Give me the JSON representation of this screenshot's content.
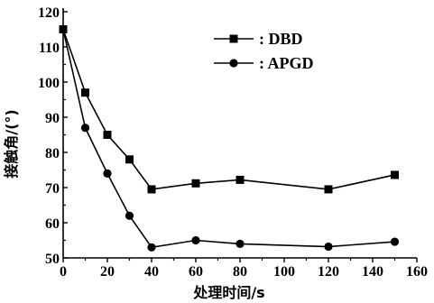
{
  "chart_data": {
    "type": "line",
    "title": "",
    "xlabel": "处理时间/s",
    "ylabel": "接触角/(°)",
    "xlim": [
      0,
      160
    ],
    "ylim": [
      50,
      120
    ],
    "x_ticks": [
      0,
      20,
      40,
      60,
      80,
      100,
      120,
      140,
      160
    ],
    "y_ticks": [
      50,
      60,
      70,
      80,
      90,
      100,
      110,
      120
    ],
    "grid": false,
    "legend_position": "top-right",
    "series": [
      {
        "name": ": DBD",
        "marker": "square",
        "color": "#000000",
        "x": [
          0,
          10,
          20,
          30,
          40,
          60,
          80,
          120,
          150
        ],
        "y": [
          115,
          97,
          85,
          78,
          69.5,
          71.2,
          72.2,
          69.5,
          73.6
        ]
      },
      {
        "name": ": APGD",
        "marker": "circle",
        "color": "#000000",
        "x": [
          0,
          10,
          20,
          30,
          40,
          60,
          80,
          120,
          150
        ],
        "y": [
          115,
          87,
          74,
          62,
          53,
          55,
          54,
          53.2,
          54.6
        ]
      }
    ]
  }
}
